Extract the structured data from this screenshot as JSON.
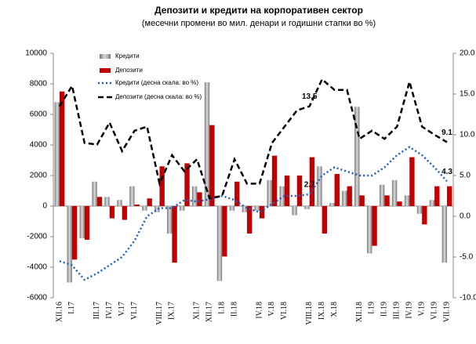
{
  "chart_data": {
    "type": "bar",
    "title": "Депозити и кредити на корпоративен сектор",
    "subtitle": "(месечни промени во мил. денари и годишни стапки во %)",
    "categories": [
      "XII.16",
      "I.17",
      null,
      "III.17",
      "IV.17",
      "V.17",
      "VI.17",
      null,
      "VIII.17",
      "IX.17",
      null,
      "XI.17",
      "XII.17",
      "I.18",
      "II.18",
      null,
      "IV.18",
      "V.18",
      "VI.18",
      null,
      "VIII.18",
      "IX.18",
      "X.18",
      null,
      "XII.18",
      "I.19",
      "II.19",
      "III.19",
      "IV.19",
      "V.19",
      "VI.19",
      "VII.19"
    ],
    "series": [
      {
        "name": "Кредити",
        "color": "#a6a6a6",
        "values": [
          6800,
          -5000,
          -2100,
          1600,
          600,
          400,
          1300,
          -300,
          -400,
          -1800,
          -300,
          1300,
          8100,
          -4900,
          -300,
          -400,
          -300,
          1700,
          1300,
          -600,
          -200,
          2600,
          200,
          1000,
          6500,
          -3100,
          1400,
          1700,
          700,
          -500,
          400,
          -3700
        ]
      },
      {
        "name": "Депозити",
        "color": "#c00000",
        "values": [
          7500,
          -3500,
          -2200,
          600,
          -800,
          -900,
          100,
          500,
          2600,
          -3700,
          2800,
          900,
          5300,
          -3300,
          1600,
          -1800,
          -800,
          3300,
          2000,
          2000,
          3200,
          -1800,
          2100,
          1300,
          700,
          -2600,
          700,
          300,
          3200,
          -1200,
          1300,
          1300
        ]
      },
      {
        "name": "Кредити (десна скала: во %)",
        "color": "#1f5fbf",
        "axis": "y2",
        "values": [
          -5.5,
          -6,
          -7.8,
          -7,
          -6,
          -5,
          -3,
          0,
          1,
          1,
          2,
          1.8,
          2.1,
          2.5,
          2,
          1,
          0.5,
          1.5,
          2.5,
          2.5,
          2.7,
          5,
          6,
          5.5,
          5,
          5,
          6,
          7.5,
          8.5,
          7.5,
          6,
          4.3
        ],
        "value_labels": [
          null,
          null,
          null,
          null,
          null,
          null,
          null,
          null,
          null,
          null,
          null,
          null,
          null,
          null,
          null,
          null,
          null,
          null,
          null,
          null,
          "2.7",
          null,
          null,
          null,
          null,
          null,
          null,
          null,
          null,
          null,
          null,
          "4.3"
        ]
      },
      {
        "name": "Депозити (десна скала: во %)",
        "color": "#000000",
        "axis": "y2",
        "values": [
          13.5,
          16,
          9,
          8.8,
          11.5,
          8,
          10.5,
          11,
          4,
          7.5,
          5.5,
          7,
          2.2,
          2.5,
          7,
          4,
          4,
          9,
          11,
          13,
          13.5,
          16.8,
          15.5,
          15.5,
          9.5,
          10.5,
          9.5,
          11,
          16.5,
          11,
          10,
          9.1
        ],
        "value_labels": [
          null,
          null,
          null,
          null,
          null,
          null,
          null,
          null,
          null,
          null,
          null,
          null,
          null,
          null,
          null,
          null,
          null,
          null,
          null,
          null,
          "13.5",
          null,
          null,
          null,
          null,
          null,
          null,
          null,
          null,
          null,
          null,
          "9.1"
        ]
      }
    ],
    "ylim": [
      -6000,
      10000
    ],
    "yticks": [
      -6000,
      -4000,
      -2000,
      0,
      2000,
      4000,
      6000,
      8000,
      10000
    ],
    "y2lim": [
      -10,
      20
    ],
    "y2ticks": [
      {
        "value": -10,
        "label": "-10.0"
      },
      {
        "value": -5,
        "label": "-5.0"
      },
      {
        "value": 0,
        "label": "0.0"
      },
      {
        "value": 5,
        "label": "5.0"
      },
      {
        "value": 10,
        "label": "10.0"
      },
      {
        "value": 15,
        "label": "15.0"
      },
      {
        "value": 20,
        "label": "20.0"
      }
    ],
    "grid": false,
    "legend": "top-left"
  }
}
